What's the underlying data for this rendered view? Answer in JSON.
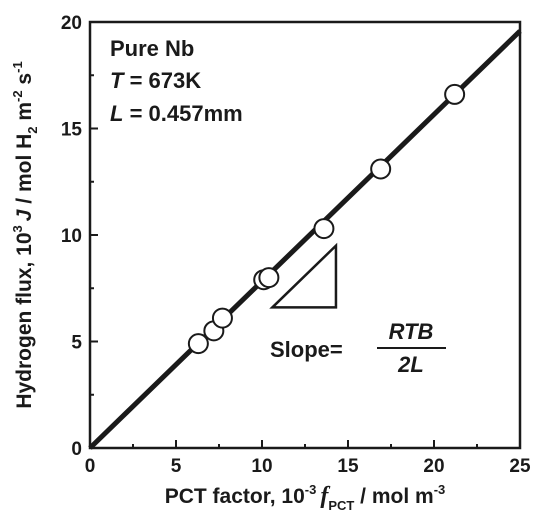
{
  "chart_data": {
    "type": "scatter",
    "xlim": [
      0,
      25
    ],
    "ylim": [
      0,
      20
    ],
    "x_ticks": [
      "0",
      "5",
      "10",
      "15",
      "20",
      "25"
    ],
    "y_ticks": [
      "0",
      "5",
      "10",
      "15",
      "20"
    ],
    "xlabel": {
      "prefix": "PCT factor, 10",
      "exp1": "-3",
      "sym": "f",
      "sub": "PCT",
      "unit": " / mol m",
      "exp2": "-3"
    },
    "ylabel": {
      "prefix": "Hydrogen flux, 10",
      "exp1": "3",
      "sym": "J",
      "unit1": " / mol H",
      "sub": "2",
      "unit2": " m",
      "exp2": "-2",
      "unit3": " s",
      "exp3": "-1"
    },
    "annotation": {
      "line1": "Pure Nb",
      "line2_sym": "T",
      "line2_val": " = 673K",
      "line3_sym": "L",
      "line3_val": " = 0.457mm"
    },
    "slope_label": {
      "text": "Slope=",
      "numerator": "RTB",
      "denominator": "2L"
    },
    "fit_line": {
      "slope": 0.783,
      "intercept": 0
    },
    "points": [
      {
        "x": 6.3,
        "y": 4.9
      },
      {
        "x": 7.2,
        "y": 5.5
      },
      {
        "x": 7.7,
        "y": 6.1
      },
      {
        "x": 10.1,
        "y": 7.9
      },
      {
        "x": 10.4,
        "y": 8.0
      },
      {
        "x": 13.6,
        "y": 10.3
      },
      {
        "x": 16.9,
        "y": 13.1
      },
      {
        "x": 21.2,
        "y": 16.6
      }
    ],
    "slope_triangle": {
      "x1": 10.6,
      "x2": 14.3,
      "y1": 6.6,
      "y2": 9.5
    },
    "colors": {
      "ink": "#1a1a1a",
      "marker_fill": "#ffffff"
    }
  }
}
